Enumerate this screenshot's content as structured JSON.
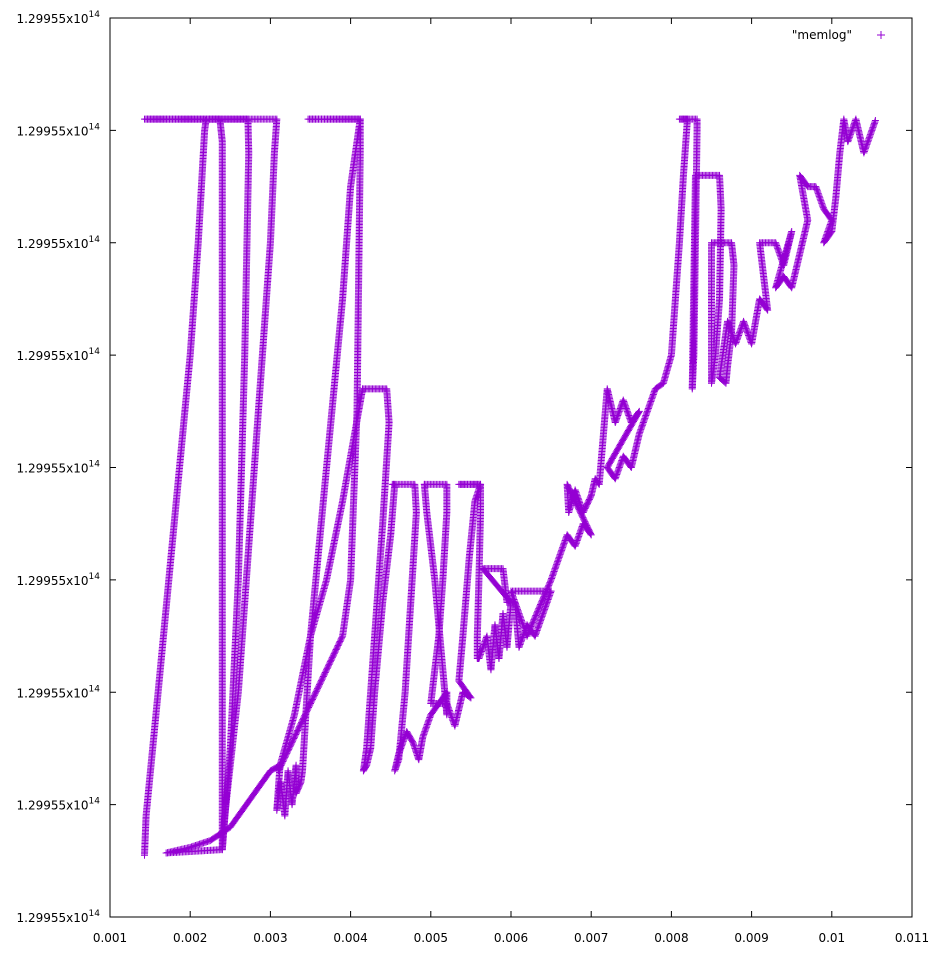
{
  "chart_data": {
    "type": "scatter",
    "title": "",
    "xlabel": "",
    "ylabel": "",
    "xlim": [
      0.001,
      0.011
    ],
    "ylim": [
      0,
      8
    ],
    "grid": false,
    "legend_position": "top-right",
    "x_ticks": [
      {
        "value": 0.001,
        "label": "0.001"
      },
      {
        "value": 0.002,
        "label": "0.002"
      },
      {
        "value": 0.003,
        "label": "0.003"
      },
      {
        "value": 0.004,
        "label": "0.004"
      },
      {
        "value": 0.005,
        "label": "0.005"
      },
      {
        "value": 0.006,
        "label": "0.006"
      },
      {
        "value": 0.007,
        "label": "0.007"
      },
      {
        "value": 0.008,
        "label": "0.008"
      },
      {
        "value": 0.009,
        "label": "0.009"
      },
      {
        "value": 0.01,
        "label": "0.01"
      },
      {
        "value": 0.011,
        "label": "0.011"
      }
    ],
    "y_ticks": [
      {
        "value": 0,
        "label": "1.29955x10",
        "exp": "14"
      },
      {
        "value": 1,
        "label": "1.29955x10",
        "exp": "14"
      },
      {
        "value": 2,
        "label": "1.29955x10",
        "exp": "14"
      },
      {
        "value": 3,
        "label": "1.29955x10",
        "exp": "14"
      },
      {
        "value": 4,
        "label": "1.29955x10",
        "exp": "14"
      },
      {
        "value": 5,
        "label": "1.29955x10",
        "exp": "14"
      },
      {
        "value": 6,
        "label": "1.29955x10",
        "exp": "14"
      },
      {
        "value": 7,
        "label": "1.29955x10",
        "exp": "14"
      },
      {
        "value": 8,
        "label": "1.29955x10",
        "exp": "14"
      }
    ],
    "series": [
      {
        "name": "\"memlog\"",
        "color": "#9400d3",
        "marker": "plus",
        "path": [
          [
            0.00143,
            0.55
          ],
          [
            0.00145,
            0.9
          ],
          [
            0.0016,
            2.0
          ],
          [
            0.0018,
            3.5
          ],
          [
            0.002,
            5.0
          ],
          [
            0.0021,
            6.0
          ],
          [
            0.00218,
            7.0
          ],
          [
            0.0022,
            7.1
          ],
          [
            0.00143,
            7.1
          ],
          [
            0.00237,
            7.1
          ],
          [
            0.0024,
            6.9
          ],
          [
            0.0024,
            0.6
          ],
          [
            0.00243,
            0.9
          ],
          [
            0.0026,
            2.0
          ],
          [
            0.0028,
            4.0
          ],
          [
            0.003,
            6.0
          ],
          [
            0.00305,
            6.8
          ],
          [
            0.00308,
            7.1
          ],
          [
            0.00222,
            7.1
          ],
          [
            0.00272,
            7.1
          ],
          [
            0.00273,
            6.8
          ],
          [
            0.00268,
            5.0
          ],
          [
            0.0026,
            3.0
          ],
          [
            0.0025,
            1.5
          ],
          [
            0.0024,
            0.6
          ],
          [
            0.0017,
            0.57
          ],
          [
            0.002,
            0.62
          ],
          [
            0.00225,
            0.68
          ],
          [
            0.0025,
            0.8
          ],
          [
            0.0028,
            1.1
          ],
          [
            0.003,
            1.3
          ],
          [
            0.00312,
            1.35
          ],
          [
            0.00308,
            0.95
          ],
          [
            0.00313,
            1.2
          ],
          [
            0.00318,
            0.9
          ],
          [
            0.00322,
            1.3
          ],
          [
            0.00327,
            1.0
          ],
          [
            0.00332,
            1.35
          ],
          [
            0.00332,
            1.1
          ],
          [
            0.00338,
            1.2
          ],
          [
            0.0034,
            1.3
          ],
          [
            0.0035,
            2.5
          ],
          [
            0.0037,
            4.0
          ],
          [
            0.0039,
            5.5
          ],
          [
            0.004,
            6.5
          ],
          [
            0.00412,
            7.1
          ],
          [
            0.00347,
            7.1
          ],
          [
            0.00412,
            7.1
          ],
          [
            0.00412,
            6.8
          ],
          [
            0.00408,
            4.5
          ],
          [
            0.004,
            3.0
          ],
          [
            0.0039,
            2.5
          ],
          [
            0.0031,
            1.3
          ],
          [
            0.0033,
            1.8
          ],
          [
            0.0035,
            2.5
          ],
          [
            0.0037,
            3.0
          ],
          [
            0.0039,
            3.7
          ],
          [
            0.0041,
            4.5
          ],
          [
            0.00415,
            4.7
          ],
          [
            0.00415,
            4.7
          ],
          [
            0.00445,
            4.7
          ],
          [
            0.00448,
            4.4
          ],
          [
            0.0044,
            3.5
          ],
          [
            0.0043,
            2.5
          ],
          [
            0.0042,
            1.5
          ],
          [
            0.00416,
            1.3
          ],
          [
            0.0042,
            1.35
          ],
          [
            0.00425,
            1.5
          ],
          [
            0.0043,
            2.0
          ],
          [
            0.0044,
            2.8
          ],
          [
            0.0045,
            3.4
          ],
          [
            0.00455,
            3.85
          ],
          [
            0.00452,
            3.85
          ],
          [
            0.0048,
            3.85
          ],
          [
            0.00482,
            3.6
          ],
          [
            0.00475,
            2.8
          ],
          [
            0.00468,
            2.0
          ],
          [
            0.0046,
            1.4
          ],
          [
            0.00455,
            1.3
          ],
          [
            0.0046,
            1.45
          ],
          [
            0.0047,
            1.65
          ],
          [
            0.00478,
            1.55
          ],
          [
            0.00485,
            1.4
          ],
          [
            0.0049,
            1.6
          ],
          [
            0.005,
            1.8
          ],
          [
            0.0052,
            2.0
          ],
          [
            0.0052,
            1.8
          ],
          [
            0.00515,
            2.2
          ],
          [
            0.00505,
            3.0
          ],
          [
            0.00495,
            3.6
          ],
          [
            0.00492,
            3.85
          ],
          [
            0.00492,
            3.85
          ],
          [
            0.0052,
            3.85
          ],
          [
            0.0052,
            3.6
          ],
          [
            0.00515,
            3.0
          ],
          [
            0.0051,
            2.5
          ],
          [
            0.005,
            1.9
          ],
          [
            0.0052,
            1.9
          ],
          [
            0.0053,
            1.7
          ],
          [
            0.0054,
            2.0
          ],
          [
            0.0055,
            1.95
          ],
          [
            0.00535,
            2.1
          ],
          [
            0.0054,
            2.5
          ],
          [
            0.00548,
            3.2
          ],
          [
            0.00555,
            3.7
          ],
          [
            0.00562,
            3.85
          ],
          [
            0.00535,
            3.85
          ],
          [
            0.00562,
            3.85
          ],
          [
            0.00562,
            3.6
          ],
          [
            0.0056,
            3.0
          ],
          [
            0.00558,
            2.5
          ],
          [
            0.00558,
            2.3
          ],
          [
            0.0056,
            2.3
          ],
          [
            0.0057,
            2.5
          ],
          [
            0.00575,
            2.2
          ],
          [
            0.0058,
            2.6
          ],
          [
            0.00585,
            2.3
          ],
          [
            0.0059,
            2.7
          ],
          [
            0.00595,
            2.4
          ],
          [
            0.006,
            2.8
          ],
          [
            0.00565,
            3.1
          ],
          [
            0.0059,
            3.1
          ],
          [
            0.00595,
            2.8
          ],
          [
            0.00605,
            2.8
          ],
          [
            0.0061,
            2.4
          ],
          [
            0.0062,
            2.6
          ],
          [
            0.0063,
            2.5
          ],
          [
            0.0064,
            2.7
          ],
          [
            0.0065,
            2.9
          ],
          [
            0.006,
            2.9
          ],
          [
            0.0061,
            2.7
          ],
          [
            0.0062,
            2.5
          ],
          [
            0.0065,
            3.0
          ],
          [
            0.0066,
            3.2
          ],
          [
            0.0067,
            3.4
          ],
          [
            0.0068,
            3.3
          ],
          [
            0.0069,
            3.5
          ],
          [
            0.007,
            3.4
          ],
          [
            0.0067,
            3.85
          ],
          [
            0.00672,
            3.6
          ],
          [
            0.0068,
            3.8
          ],
          [
            0.0069,
            3.6
          ],
          [
            0.007,
            3.75
          ],
          [
            0.00705,
            3.9
          ],
          [
            0.0071,
            3.85
          ],
          [
            0.0072,
            4.7
          ],
          [
            0.0073,
            4.4
          ],
          [
            0.0074,
            4.6
          ],
          [
            0.0075,
            4.4
          ],
          [
            0.0076,
            4.5
          ],
          [
            0.0072,
            4.0
          ],
          [
            0.0073,
            3.9
          ],
          [
            0.0074,
            4.1
          ],
          [
            0.0075,
            4.0
          ],
          [
            0.0076,
            4.3
          ],
          [
            0.0077,
            4.5
          ],
          [
            0.0078,
            4.7
          ],
          [
            0.0079,
            4.75
          ],
          [
            0.008,
            5.0
          ],
          [
            0.00805,
            5.5
          ],
          [
            0.0081,
            6.0
          ],
          [
            0.00815,
            6.6
          ],
          [
            0.0082,
            7.1
          ],
          [
            0.0081,
            7.1
          ],
          [
            0.00832,
            7.1
          ],
          [
            0.00832,
            7.0
          ],
          [
            0.0083,
            6.0
          ],
          [
            0.00828,
            5.0
          ],
          [
            0.00826,
            4.7
          ],
          [
            0.0083,
            6.6
          ],
          [
            0.0086,
            6.6
          ],
          [
            0.00862,
            6.3
          ],
          [
            0.0086,
            5.5
          ],
          [
            0.00855,
            5.0
          ],
          [
            0.0085,
            4.75
          ],
          [
            0.0085,
            6.0
          ],
          [
            0.00875,
            6.0
          ],
          [
            0.00878,
            5.8
          ],
          [
            0.00875,
            5.2
          ],
          [
            0.0087,
            4.9
          ],
          [
            0.00868,
            4.75
          ],
          [
            0.0086,
            4.8
          ],
          [
            0.0087,
            5.3
          ],
          [
            0.0088,
            5.1
          ],
          [
            0.0089,
            5.3
          ],
          [
            0.009,
            5.1
          ],
          [
            0.0091,
            5.5
          ],
          [
            0.0092,
            5.4
          ],
          [
            0.0091,
            6.0
          ],
          [
            0.0093,
            6.0
          ],
          [
            0.0094,
            5.8
          ],
          [
            0.0095,
            6.1
          ],
          [
            0.0093,
            5.6
          ],
          [
            0.0094,
            5.7
          ],
          [
            0.0095,
            5.6
          ],
          [
            0.0096,
            5.9
          ],
          [
            0.0097,
            6.2
          ],
          [
            0.0096,
            6.6
          ],
          [
            0.0097,
            6.5
          ],
          [
            0.0098,
            6.5
          ],
          [
            0.0099,
            6.3
          ],
          [
            0.01,
            6.2
          ],
          [
            0.0099,
            6.0
          ],
          [
            0.01,
            6.1
          ],
          [
            0.01005,
            6.4
          ],
          [
            0.0101,
            6.8
          ],
          [
            0.01015,
            7.1
          ],
          [
            0.0102,
            6.9
          ],
          [
            0.0103,
            7.1
          ],
          [
            0.0104,
            6.8
          ],
          [
            0.01055,
            7.1
          ]
        ]
      }
    ]
  }
}
